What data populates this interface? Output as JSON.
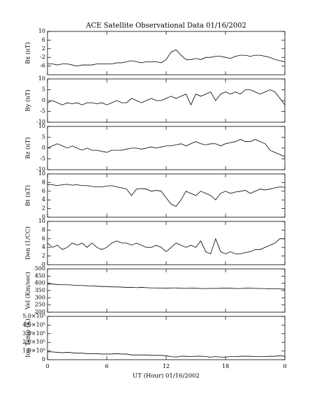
{
  "chart_data": [
    {
      "type": "line",
      "title": "ACE Satellite Observational Data   01/16/2002",
      "ylabel": "Bx (nT)",
      "color": "#000000",
      "x": [
        0,
        0.5,
        1,
        1.5,
        2,
        2.5,
        3,
        3.5,
        4,
        4.5,
        5,
        5.5,
        6,
        6.5,
        7,
        7.5,
        8,
        8.5,
        9,
        9.5,
        10,
        10.5,
        11,
        11.5,
        12,
        12.5,
        13,
        13.5,
        14,
        14.5,
        15,
        15.5,
        16,
        16.5,
        17,
        17.5,
        18,
        18.5,
        19,
        19.5,
        20,
        20.5,
        21,
        21.5,
        22,
        22.5,
        23,
        23.5,
        24
      ],
      "values": [
        -5,
        -5,
        -5.5,
        -5,
        -5,
        -5.5,
        -6,
        -5.5,
        -5.5,
        -5.5,
        -5,
        -5,
        -5,
        -5,
        -4.5,
        -4.5,
        -4,
        -3.5,
        -4,
        -4.5,
        -4,
        -4,
        -4,
        -4.5,
        -3,
        0.5,
        1.5,
        -1,
        -3,
        -3,
        -2.5,
        -3,
        -2,
        -2,
        -1.5,
        -1.5,
        -2,
        -2.5,
        -1.5,
        -1,
        -1,
        -1.5,
        -1,
        -1,
        -1.5,
        -2,
        -3,
        -3.5,
        -4
      ],
      "xlim": [
        0,
        24
      ],
      "ylim": [
        -10,
        10
      ],
      "yticks": [
        -6,
        -2,
        2,
        6,
        10
      ]
    },
    {
      "type": "line",
      "ylabel": "By (nT)",
      "color": "#000000",
      "x": [
        0,
        0.5,
        1,
        1.5,
        2,
        2.5,
        3,
        3.5,
        4,
        4.5,
        5,
        5.5,
        6,
        6.5,
        7,
        7.5,
        8,
        8.5,
        9,
        9.5,
        10,
        10.5,
        11,
        11.5,
        12,
        12.5,
        13,
        13.5,
        14,
        14.5,
        15,
        15.5,
        16,
        16.5,
        17,
        17.5,
        18,
        18.5,
        19,
        19.5,
        20,
        20.5,
        21,
        21.5,
        22,
        22.5,
        23,
        23.5,
        24
      ],
      "values": [
        -1,
        0,
        -1,
        -2,
        -1,
        -1.5,
        -1,
        -2,
        -1,
        -1,
        -1.5,
        -1,
        -2,
        -1,
        0,
        -1,
        -1,
        1,
        0,
        -1,
        0,
        1,
        0,
        0,
        1,
        2,
        1,
        2,
        3,
        -2,
        3,
        2,
        3,
        4,
        0,
        3,
        4,
        3,
        4,
        3,
        5,
        5,
        4,
        3,
        4,
        5,
        4,
        1,
        -2
      ],
      "xlim": [
        0,
        24
      ],
      "ylim": [
        -10,
        10
      ],
      "yticks": [
        -10,
        -5,
        0,
        5,
        10
      ]
    },
    {
      "type": "line",
      "ylabel": "Bz (nT)",
      "color": "#000000",
      "x": [
        0,
        0.5,
        1,
        1.5,
        2,
        2.5,
        3,
        3.5,
        4,
        4.5,
        5,
        5.5,
        6,
        6.5,
        7,
        7.5,
        8,
        8.5,
        9,
        9.5,
        10,
        10.5,
        11,
        11.5,
        12,
        12.5,
        13,
        13.5,
        14,
        14.5,
        15,
        15.5,
        16,
        16.5,
        17,
        17.5,
        18,
        18.5,
        19,
        19.5,
        20,
        20.5,
        21,
        21.5,
        22,
        22.5,
        23,
        23.5,
        24
      ],
      "values": [
        0,
        1,
        2,
        1,
        0,
        1,
        0,
        -1,
        0,
        -1,
        -1,
        -1.5,
        -2,
        -1,
        -1,
        -1,
        -0.5,
        0,
        0,
        -0.5,
        0,
        0.5,
        0,
        0.5,
        1,
        1,
        1.5,
        2,
        1,
        2,
        3,
        2,
        1.5,
        2,
        2,
        1,
        2,
        2.5,
        3,
        4,
        3,
        3,
        4,
        3,
        2,
        -1,
        -2,
        -3,
        -4
      ],
      "xlim": [
        0,
        24
      ],
      "ylim": [
        -10,
        10
      ],
      "yticks": [
        -10,
        -5,
        0,
        5,
        10
      ]
    },
    {
      "type": "line",
      "ylabel": "Bt (nT)",
      "color": "#000000",
      "x": [
        0,
        0.5,
        1,
        1.5,
        2,
        2.5,
        3,
        3.5,
        4,
        4.5,
        5,
        5.5,
        6,
        6.5,
        7,
        7.5,
        8,
        8.5,
        9,
        9.5,
        10,
        10.5,
        11,
        11.5,
        12,
        12.5,
        13,
        13.5,
        14,
        14.5,
        15,
        15.5,
        16,
        16.5,
        17,
        17.5,
        18,
        18.5,
        19,
        19.5,
        20,
        20.5,
        21,
        21.5,
        22,
        22.5,
        23,
        23.5,
        24
      ],
      "values": [
        7.5,
        7.5,
        7.3,
        7.5,
        7.6,
        7.4,
        7.5,
        7.3,
        7.3,
        7.1,
        7,
        7,
        7.2,
        7.3,
        7,
        6.8,
        6.5,
        5,
        6.5,
        6.6,
        6.5,
        6,
        6.2,
        6,
        4.5,
        3,
        2.5,
        4,
        6,
        5.5,
        5,
        6,
        5.5,
        5,
        4,
        5.5,
        6,
        5.5,
        5.8,
        6,
        6.2,
        5.5,
        6,
        6.5,
        6.3,
        6.5,
        6.8,
        7,
        6.9
      ],
      "xlim": [
        0,
        24
      ],
      "ylim": [
        0,
        10
      ],
      "yticks": [
        0,
        2,
        4,
        6,
        8,
        10
      ]
    },
    {
      "type": "line",
      "ylabel": "Den (1/CC)",
      "color": "#000000",
      "x": [
        0,
        0.5,
        1,
        1.5,
        2,
        2.5,
        3,
        3.5,
        4,
        4.5,
        5,
        5.5,
        6,
        6.5,
        7,
        7.5,
        8,
        8.5,
        9,
        9.5,
        10,
        10.5,
        11,
        11.5,
        12,
        12.5,
        13,
        13.5,
        14,
        14.5,
        15,
        15.5,
        16,
        16.5,
        17,
        17.5,
        18,
        18.5,
        19,
        19.5,
        20,
        20.5,
        21,
        21.5,
        22,
        22.5,
        23,
        23.5,
        24
      ],
      "values": [
        5,
        4,
        4.5,
        3.5,
        4,
        5,
        4.5,
        5,
        4,
        5,
        4,
        3.5,
        4,
        5,
        5.5,
        5,
        5,
        4.5,
        5,
        4.5,
        4,
        4,
        4.5,
        4,
        3,
        4,
        5,
        4.5,
        4,
        4.5,
        4,
        5.5,
        3,
        2.5,
        6,
        3,
        2.5,
        3,
        2.5,
        2.5,
        2.8,
        3,
        3.5,
        3.5,
        4,
        4.5,
        5,
        6,
        6
      ],
      "xlim": [
        0,
        24
      ],
      "ylim": [
        0,
        10
      ],
      "yticks": [
        0,
        2,
        4,
        6,
        8,
        10
      ]
    },
    {
      "type": "line",
      "ylabel": "Vel (Km/sec)",
      "color": "#000000",
      "x": [
        0,
        0.5,
        1,
        1.5,
        2,
        2.5,
        3,
        3.5,
        4,
        4.5,
        5,
        5.5,
        6,
        6.5,
        7,
        7.5,
        8,
        8.5,
        9,
        9.5,
        10,
        10.5,
        11,
        11.5,
        12,
        12.5,
        13,
        13.5,
        14,
        14.5,
        15,
        15.5,
        16,
        16.5,
        17,
        17.5,
        18,
        18.5,
        19,
        19.5,
        20,
        20.5,
        21,
        21.5,
        22,
        22.5,
        23,
        23.5,
        24
      ],
      "values": [
        395,
        395,
        392,
        390,
        390,
        388,
        385,
        385,
        383,
        382,
        380,
        378,
        378,
        375,
        375,
        374,
        372,
        372,
        370,
        372,
        370,
        368,
        368,
        367,
        366,
        368,
        368,
        366,
        365,
        366,
        366,
        364,
        364,
        365,
        364,
        366,
        366,
        366,
        364,
        364,
        366,
        366,
        365,
        364,
        364,
        362,
        362,
        361,
        360
      ],
      "xlim": [
        0,
        24
      ],
      "ylim": [
        200,
        500
      ],
      "yticks": [
        200,
        250,
        300,
        350,
        400,
        450,
        500
      ]
    },
    {
      "type": "line",
      "ylabel": "Ion Temp (K)",
      "xlabel": "UT (Hour)  01/16/2002",
      "color": "#000000",
      "x": [
        0,
        0.5,
        1,
        1.5,
        2,
        2.5,
        3,
        3.5,
        4,
        4.5,
        5,
        5.5,
        6,
        6.5,
        7,
        7.5,
        8,
        8.5,
        9,
        9.5,
        10,
        10.5,
        11,
        11.5,
        12,
        12.5,
        13,
        13.5,
        14,
        14.5,
        15,
        15.5,
        16,
        16.5,
        17,
        17.5,
        18,
        18.5,
        19,
        19.5,
        20,
        20.5,
        21,
        21.5,
        22,
        22.5,
        23,
        23.5,
        24
      ],
      "values": [
        90000,
        90000,
        85000,
        80000,
        85000,
        80000,
        75000,
        75000,
        70000,
        70000,
        70000,
        65000,
        65000,
        65000,
        70000,
        65000,
        65000,
        55000,
        55000,
        55000,
        55000,
        50000,
        50000,
        50000,
        45000,
        35000,
        30000,
        40000,
        40000,
        35000,
        40000,
        40000,
        35000,
        30000,
        35000,
        30000,
        30000,
        35000,
        35000,
        40000,
        40000,
        40000,
        35000,
        35000,
        35000,
        40000,
        40000,
        45000,
        40000
      ],
      "xlim": [
        0,
        24
      ],
      "ylim": [
        0,
        500000
      ],
      "yticks": [
        0,
        {
          "value": 100000,
          "label": "1.0×10⁵"
        },
        {
          "value": 200000,
          "label": "2.0×10⁵"
        },
        {
          "value": 300000,
          "label": "3.0×10⁵"
        },
        {
          "value": 400000,
          "label": "4.0×10⁵"
        },
        {
          "value": 500000,
          "label": "5.0×10⁵"
        }
      ],
      "xticks": [
        0,
        6,
        12,
        18,
        {
          "value": 24,
          "label": "0"
        }
      ]
    }
  ]
}
